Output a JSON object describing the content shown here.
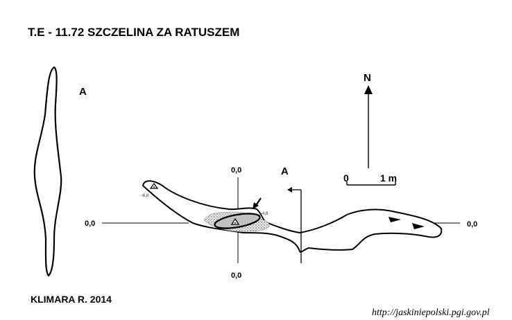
{
  "title": "T.E - 11.72  SZCZELINA ZA RATUSZEM",
  "author": "KLIMARA R. 2014",
  "source_url": "http://jaskiniepolski.pgi.gov.pl",
  "north_label": "N",
  "section_label_left": "A",
  "section_label_plan": "A",
  "scale": {
    "start": "0",
    "end": "1 m"
  },
  "datum": {
    "top": "0,0",
    "left": "0,0",
    "bottom": "0,0",
    "right": "0,0"
  },
  "depth_marks": {
    "left": "-6,8",
    "middle": "-4,6"
  },
  "colors": {
    "ink": "#000000",
    "fill": "#bdbdbd",
    "paper": "#ffffff"
  }
}
